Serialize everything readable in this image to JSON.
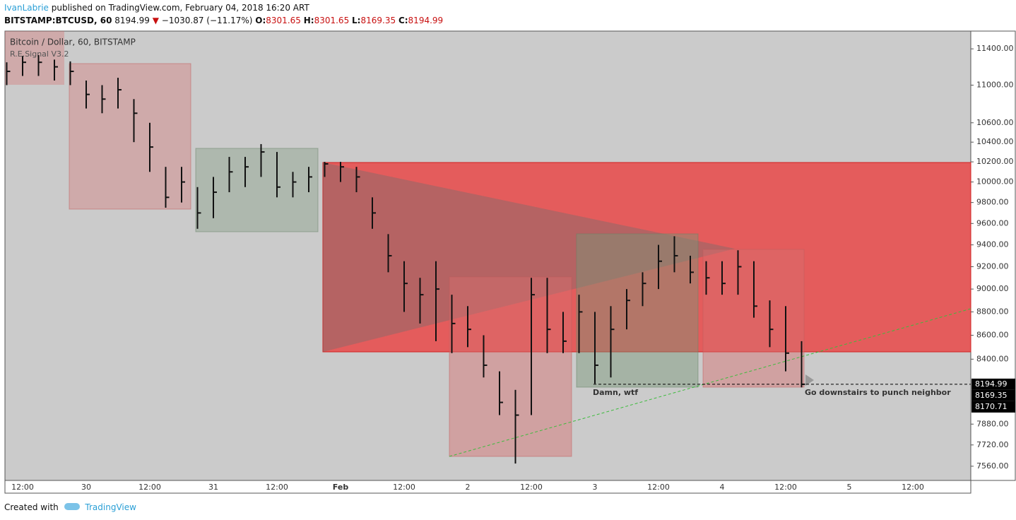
{
  "header": {
    "author": "IvanLabrie",
    "published": "published on TradingView.com, February 04, 2018 16:20 ART",
    "symbol": "BITSTAMP:BTCUSD, 60",
    "last": "8194.99",
    "arrow": "▼",
    "change": "−1030.87 (−11.17%)",
    "o_label": "O:",
    "o": "8301.65",
    "h_label": "H:",
    "h": "8301.65",
    "l_label": "L:",
    "l": "8169.35",
    "c_label": "C:",
    "c": "8194.99"
  },
  "legend": {
    "instrument": "Bitcoin / Dollar, 60, BITSTAMP",
    "indicator": "R.E.Signal V3.2"
  },
  "annotations": {
    "left": "Damn, wtf",
    "right": "Go downstairs to punch neighbor"
  },
  "footer": {
    "created": "Created with",
    "brand": "TradingView"
  },
  "chart_data": {
    "type": "ohlc",
    "categories": [
      null,
      "12:00",
      null,
      null,
      null,
      "30",
      null,
      null,
      null,
      "12:00",
      null,
      null,
      null,
      "31",
      null,
      null,
      null,
      "12:00",
      null,
      null,
      null,
      "Feb",
      null,
      null,
      null,
      "12:00",
      null,
      null,
      null,
      "2",
      null,
      null,
      null,
      "12:00",
      null,
      null,
      null,
      "3",
      null,
      null,
      null,
      "12:00",
      null,
      null,
      null,
      "4",
      null,
      null,
      null,
      "12:00",
      null,
      null,
      null,
      "5",
      null,
      null,
      null,
      "12:00",
      null,
      null,
      null
    ],
    "high": [
      11250,
      11320,
      11330,
      11280,
      11260,
      11050,
      11000,
      11080,
      10850,
      10600,
      10150,
      10150,
      9950,
      10050,
      10250,
      10250,
      10380,
      10300,
      10100,
      10150,
      10200,
      10200,
      10150,
      9850,
      9500,
      9250,
      9100,
      9250,
      8950,
      8850,
      8600,
      8300,
      8150,
      9100,
      9100,
      8800,
      8950,
      8800,
      8850,
      9000,
      9150,
      9400,
      9480,
      9300,
      9250,
      9250,
      9350,
      9250,
      8900,
      8850,
      8550,
      null,
      null,
      null,
      null,
      null,
      null,
      null,
      null,
      null,
      null
    ],
    "low": [
      11000,
      11100,
      11100,
      11050,
      11000,
      10750,
      10700,
      10750,
      10400,
      10100,
      9750,
      9800,
      9550,
      9650,
      9900,
      9950,
      10050,
      9850,
      9850,
      9900,
      10050,
      10000,
      9900,
      9550,
      9150,
      8800,
      8700,
      8550,
      8450,
      8500,
      8250,
      7950,
      7580,
      7950,
      8450,
      8450,
      8450,
      8200,
      8250,
      8650,
      8850,
      9000,
      9150,
      9050,
      8950,
      8950,
      8950,
      8750,
      8500,
      8300,
      8170,
      null,
      null,
      null,
      null,
      null,
      null,
      null,
      null,
      null,
      null
    ],
    "close": [
      11150,
      11250,
      11250,
      11200,
      11150,
      10900,
      10850,
      10950,
      10700,
      10350,
      9850,
      10000,
      9700,
      9900,
      10100,
      10150,
      10300,
      9950,
      10000,
      10050,
      10180,
      10150,
      10050,
      9700,
      9300,
      9050,
      8950,
      9000,
      8700,
      8650,
      8350,
      8050,
      7950,
      8950,
      8650,
      8550,
      8800,
      8350,
      8650,
      8900,
      9050,
      9250,
      9300,
      9150,
      9100,
      9050,
      9200,
      8850,
      8650,
      8450,
      8195,
      null,
      null,
      null,
      null,
      null,
      null,
      null,
      null,
      null,
      null
    ],
    "color": "#111111",
    "log_scale": true,
    "ylim": [
      7455,
      11601
    ],
    "yticks": [
      {
        "value": 7560,
        "label": "7560.00"
      },
      {
        "value": 7720,
        "label": "7720.00"
      },
      {
        "value": 7880,
        "label": "7880.00"
      },
      {
        "value": 8400,
        "label": "8400.00"
      },
      {
        "value": 8600,
        "label": "8600.00"
      },
      {
        "value": 8800,
        "label": "8800.00"
      },
      {
        "value": 9000,
        "label": "9000.00"
      },
      {
        "value": 9200,
        "label": "9200.00"
      },
      {
        "value": 9400,
        "label": "9400.00"
      },
      {
        "value": 9600,
        "label": "9600.00"
      },
      {
        "value": 9800,
        "label": "9800.00"
      },
      {
        "value": 10000,
        "label": "10000.00"
      },
      {
        "value": 10200,
        "label": "10200.00"
      },
      {
        "value": 10400,
        "label": "10400.00"
      },
      {
        "value": 10600,
        "label": "10600.00"
      },
      {
        "value": 11000,
        "label": "11000.00"
      },
      {
        "value": 11400,
        "label": "11400.00"
      }
    ],
    "price_labels": [
      8194.99,
      8169.35,
      8170.71
    ],
    "grid": false
  }
}
